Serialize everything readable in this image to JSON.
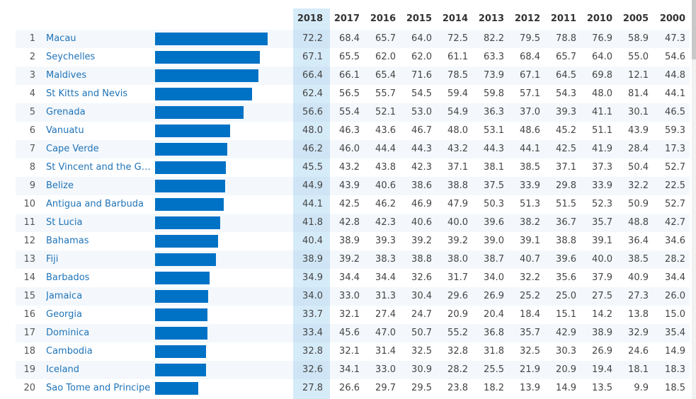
{
  "chart_data": {
    "type": "table",
    "bar_max": 80,
    "years": [
      "2018",
      "2017",
      "2016",
      "2015",
      "2014",
      "2013",
      "2012",
      "2011",
      "2010",
      "2005",
      "2000"
    ],
    "highlight_year": "2018",
    "rows": [
      {
        "rank": "1",
        "country": "Macau",
        "values": [
          "72.2",
          "68.4",
          "65.7",
          "64.0",
          "72.5",
          "82.2",
          "79.5",
          "78.8",
          "76.9",
          "58.9",
          "47.3"
        ]
      },
      {
        "rank": "2",
        "country": "Seychelles",
        "values": [
          "67.1",
          "65.5",
          "62.0",
          "62.0",
          "61.1",
          "63.3",
          "68.4",
          "65.7",
          "64.0",
          "55.0",
          "54.6"
        ]
      },
      {
        "rank": "3",
        "country": "Maldives",
        "values": [
          "66.4",
          "66.1",
          "65.4",
          "71.6",
          "78.5",
          "73.9",
          "67.1",
          "64.5",
          "69.8",
          "12.1",
          "44.8"
        ]
      },
      {
        "rank": "4",
        "country": "St Kitts and Nevis",
        "values": [
          "62.4",
          "56.5",
          "55.7",
          "54.5",
          "59.4",
          "59.8",
          "57.1",
          "54.3",
          "48.0",
          "81.4",
          "44.1"
        ]
      },
      {
        "rank": "5",
        "country": "Grenada",
        "values": [
          "56.6",
          "55.4",
          "52.1",
          "53.0",
          "54.9",
          "36.3",
          "37.0",
          "39.3",
          "41.1",
          "30.1",
          "46.5"
        ]
      },
      {
        "rank": "6",
        "country": "Vanuatu",
        "values": [
          "48.0",
          "46.3",
          "43.6",
          "46.7",
          "48.0",
          "53.1",
          "48.6",
          "45.2",
          "51.1",
          "43.9",
          "59.3"
        ]
      },
      {
        "rank": "7",
        "country": "Cape Verde",
        "values": [
          "46.2",
          "46.0",
          "44.4",
          "44.3",
          "43.2",
          "44.3",
          "44.1",
          "42.5",
          "41.9",
          "28.4",
          "17.3"
        ]
      },
      {
        "rank": "8",
        "country": "St Vincent and the Gre...",
        "values": [
          "45.5",
          "43.2",
          "43.8",
          "42.3",
          "37.1",
          "38.1",
          "38.5",
          "37.1",
          "37.3",
          "50.4",
          "52.7"
        ]
      },
      {
        "rank": "9",
        "country": "Belize",
        "values": [
          "44.9",
          "43.9",
          "40.6",
          "38.6",
          "38.8",
          "37.5",
          "33.9",
          "29.8",
          "33.9",
          "32.2",
          "22.5"
        ]
      },
      {
        "rank": "10",
        "country": "Antigua and Barbuda",
        "values": [
          "44.1",
          "42.5",
          "46.2",
          "46.9",
          "47.9",
          "50.3",
          "51.3",
          "51.5",
          "52.3",
          "50.9",
          "52.7"
        ]
      },
      {
        "rank": "11",
        "country": "St Lucia",
        "values": [
          "41.8",
          "42.8",
          "42.3",
          "40.6",
          "40.0",
          "39.6",
          "38.2",
          "36.7",
          "35.7",
          "48.8",
          "42.7"
        ]
      },
      {
        "rank": "12",
        "country": "Bahamas",
        "values": [
          "40.4",
          "38.9",
          "39.3",
          "39.2",
          "39.2",
          "39.0",
          "39.1",
          "38.8",
          "39.1",
          "36.4",
          "34.6"
        ]
      },
      {
        "rank": "13",
        "country": "Fiji",
        "values": [
          "38.9",
          "39.2",
          "38.3",
          "38.8",
          "38.0",
          "38.7",
          "40.7",
          "39.6",
          "40.0",
          "38.5",
          "28.2"
        ]
      },
      {
        "rank": "14",
        "country": "Barbados",
        "values": [
          "34.9",
          "34.4",
          "34.4",
          "32.6",
          "31.7",
          "34.0",
          "32.2",
          "35.6",
          "37.9",
          "40.9",
          "34.4"
        ]
      },
      {
        "rank": "15",
        "country": "Jamaica",
        "values": [
          "34.0",
          "33.0",
          "31.3",
          "30.4",
          "29.6",
          "26.9",
          "25.2",
          "25.0",
          "27.5",
          "27.3",
          "26.0"
        ]
      },
      {
        "rank": "16",
        "country": "Georgia",
        "values": [
          "33.7",
          "32.1",
          "27.4",
          "24.7",
          "20.9",
          "20.4",
          "18.4",
          "15.1",
          "14.2",
          "13.8",
          "15.0"
        ]
      },
      {
        "rank": "17",
        "country": "Dominica",
        "values": [
          "33.4",
          "45.6",
          "47.0",
          "50.7",
          "55.2",
          "36.8",
          "35.7",
          "42.9",
          "38.9",
          "32.9",
          "35.4"
        ]
      },
      {
        "rank": "18",
        "country": "Cambodia",
        "values": [
          "32.8",
          "32.1",
          "31.4",
          "32.5",
          "32.8",
          "31.8",
          "32.5",
          "30.3",
          "26.9",
          "24.6",
          "14.9"
        ]
      },
      {
        "rank": "19",
        "country": "Iceland",
        "values": [
          "32.6",
          "34.1",
          "33.0",
          "30.9",
          "28.2",
          "25.5",
          "21.9",
          "20.9",
          "19.4",
          "18.1",
          "18.3"
        ]
      },
      {
        "rank": "20",
        "country": "Sao Tome and Principe",
        "values": [
          "27.8",
          "26.6",
          "29.7",
          "29.5",
          "23.8",
          "18.2",
          "13.9",
          "14.9",
          "13.5",
          "9.9",
          "18.5"
        ]
      }
    ]
  },
  "colors": {
    "bar": "#0072c6",
    "highlight": "#d6ebf8",
    "link": "#1f73b7"
  }
}
